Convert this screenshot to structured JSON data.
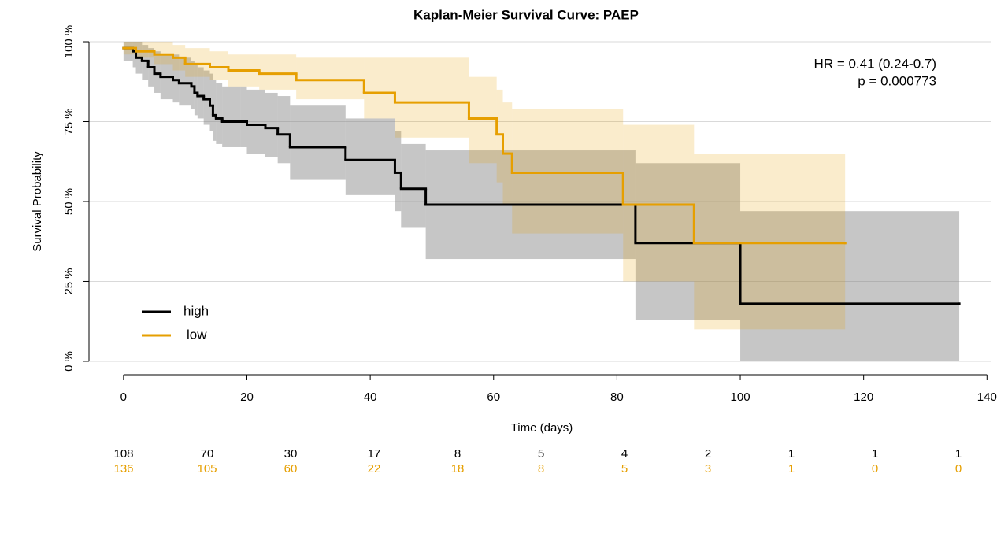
{
  "chart_data": {
    "type": "km",
    "title": "Kaplan-Meier Survival Curve: PAEP",
    "xlabel": "Time (days)",
    "ylabel": "Survival Probability",
    "annotations": [
      "HR = 0.41 (0.24-0.7)",
      "p = 0.000773"
    ],
    "xlim": [
      -5.6,
      140.6
    ],
    "xticks": [
      0,
      20,
      40,
      60,
      80,
      100,
      120,
      140
    ],
    "ylim": [
      -4.2,
      103.7
    ],
    "yticks": [
      {
        "value": 0,
        "label": "0 %"
      },
      {
        "value": 25,
        "label": "25 %"
      },
      {
        "value": 50,
        "label": "50 %"
      },
      {
        "value": 75,
        "label": "75 %"
      },
      {
        "value": 100,
        "label": "100 %"
      }
    ],
    "grid": true,
    "series": [
      {
        "name": "high",
        "color": "#000000",
        "band_color": "rgba(128,128,128,0.45)",
        "x": [
          0,
          1.5,
          2,
          3,
          4,
          5,
          6,
          8,
          9,
          11,
          11.5,
          12,
          13,
          14,
          14.5,
          15,
          16,
          19,
          20,
          23,
          25,
          27,
          36,
          44,
          45,
          49,
          83,
          100,
          135.5
        ],
        "values": [
          98,
          97,
          95,
          94,
          92,
          90,
          89,
          88,
          87,
          86,
          84,
          83,
          82,
          80,
          77,
          76,
          75,
          75,
          74,
          73,
          71,
          67,
          63,
          59,
          54,
          49,
          37,
          18,
          18
        ],
        "lower": [
          94,
          92,
          90,
          88,
          86,
          84,
          82,
          81,
          80,
          79,
          77,
          76,
          74,
          72,
          69,
          68,
          67,
          67,
          65,
          64,
          62,
          57,
          52,
          47,
          42,
          32,
          13,
          0,
          0
        ],
        "upper": [
          100,
          100,
          100,
          99,
          98,
          97,
          96,
          96,
          95,
          94,
          93,
          92,
          91,
          90,
          88,
          87,
          86,
          86,
          85,
          84,
          83,
          80,
          76,
          72,
          68,
          66,
          62,
          47,
          47
        ],
        "at_risk": [
          108,
          70,
          30,
          17,
          8,
          5,
          4,
          2,
          1,
          1,
          1
        ]
      },
      {
        "name": "low",
        "color": "#E69F00",
        "band_color": "rgba(230,159,0,0.2)",
        "x": [
          0,
          2,
          5,
          8,
          10,
          14,
          17,
          22,
          28,
          39,
          44,
          56,
          60.5,
          61.5,
          63,
          81,
          92.5,
          117
        ],
        "values": [
          98,
          97,
          96,
          95,
          93,
          92,
          91,
          90,
          88,
          84,
          81,
          76,
          71,
          65,
          59,
          49,
          37,
          37
        ],
        "lower": [
          96,
          95,
          93,
          91,
          89,
          88,
          86,
          85,
          82,
          76,
          70,
          62,
          56,
          49,
          40,
          25,
          10,
          10
        ],
        "upper": [
          100,
          100,
          100,
          99,
          98,
          97,
          96,
          96,
          95,
          95,
          95,
          89,
          85,
          81,
          79,
          74,
          65,
          65
        ],
        "at_risk": [
          136,
          105,
          60,
          22,
          18,
          8,
          5,
          3,
          1,
          0,
          0
        ]
      }
    ]
  }
}
